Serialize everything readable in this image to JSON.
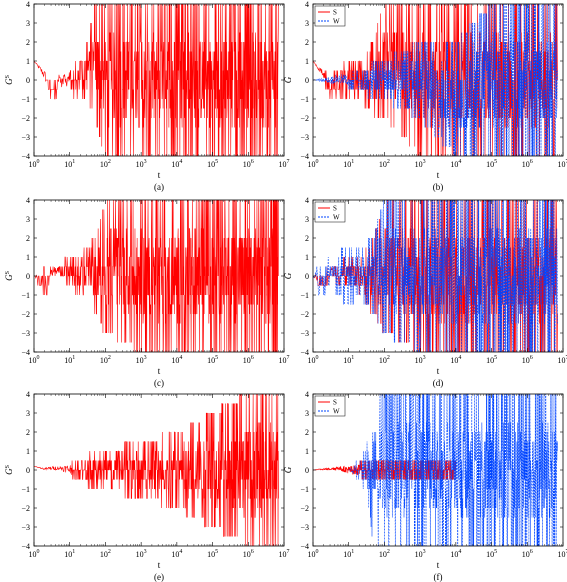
{
  "colors": {
    "S": "#ff0000",
    "W": "#0044ff",
    "axis": "#000000"
  },
  "chart_data": [
    {
      "type": "line",
      "panel": "(a)",
      "xlabel": "t",
      "ylabel": "G^S",
      "xscale": "log",
      "xlim": [
        1,
        10000000
      ],
      "ylim": [
        -4,
        4
      ],
      "legend": null,
      "series": [
        {
          "name": "S",
          "style": "solid",
          "x": [
            1,
            2,
            3,
            4,
            5,
            6,
            7,
            8,
            10,
            12,
            15,
            20,
            30,
            50,
            100,
            1000,
            10000,
            100000,
            1000000,
            7000000
          ],
          "envelope_min": [
            1,
            0,
            -1,
            -1,
            0,
            -0.5,
            0,
            -0.5,
            0,
            -1,
            -1,
            -1,
            -1,
            -2,
            -4,
            -4,
            -4,
            -4,
            -4,
            -4
          ],
          "envelope_max": [
            1,
            0.5,
            0,
            0,
            0.5,
            0,
            0.5,
            0,
            0.5,
            0.5,
            1,
            1,
            2,
            4,
            4,
            4,
            4,
            4,
            4,
            4
          ]
        }
      ]
    },
    {
      "type": "line",
      "panel": "(b)",
      "xlabel": "t",
      "ylabel": "G",
      "xscale": "log",
      "xlim": [
        1,
        10000000
      ],
      "ylim": [
        -4,
        4
      ],
      "legend": "top-left",
      "series": [
        {
          "name": "S",
          "style": "solid",
          "x": [
            1,
            2,
            3,
            5,
            10,
            20,
            50,
            100,
            1000,
            10000,
            100000,
            1000000,
            7000000
          ],
          "envelope_min": [
            1,
            0,
            -1,
            -1,
            -1,
            -1,
            -2,
            -2,
            -4,
            -4,
            -4,
            -4,
            -4
          ],
          "envelope_max": [
            1,
            0.5,
            0,
            0.5,
            1,
            1,
            2,
            4,
            4,
            4,
            4,
            4,
            4
          ]
        },
        {
          "name": "W",
          "style": "dashed",
          "x": [
            1,
            2,
            3,
            5,
            10,
            20,
            50,
            100,
            1000,
            10000,
            100000,
            1000000,
            7000000
          ],
          "envelope_min": [
            0,
            -0.1,
            -0.2,
            -0.2,
            -0.3,
            -0.5,
            -1,
            -1,
            -2,
            -4,
            -4,
            -4,
            -4
          ],
          "envelope_max": [
            0,
            0.1,
            0.2,
            0.3,
            0.3,
            0.5,
            1,
            1,
            2,
            2,
            4,
            4,
            4
          ]
        }
      ]
    },
    {
      "type": "line",
      "panel": "(c)",
      "xlabel": "t",
      "ylabel": "G^S",
      "xscale": "log",
      "xlim": [
        1,
        10000000
      ],
      "ylim": [
        -4,
        4
      ],
      "legend": null,
      "series": [
        {
          "name": "S",
          "style": "solid",
          "x": [
            1,
            2,
            3,
            5,
            10,
            20,
            50,
            100,
            1000,
            10000,
            100000,
            1000000,
            7000000
          ],
          "envelope_min": [
            0,
            -1.5,
            0,
            0,
            -0.5,
            -1,
            -2,
            -3,
            -4,
            -4,
            -4,
            -4,
            -4
          ],
          "envelope_max": [
            0,
            0.5,
            0.5,
            0.5,
            1,
            1,
            2,
            4,
            4,
            4,
            4,
            4,
            4
          ]
        }
      ]
    },
    {
      "type": "line",
      "panel": "(d)",
      "xlabel": "t",
      "ylabel": "G",
      "xscale": "log",
      "xlim": [
        1,
        10000000
      ],
      "ylim": [
        -4,
        4
      ],
      "legend": "top-left",
      "series": [
        {
          "name": "S",
          "style": "solid",
          "x": [
            1,
            2,
            3,
            5,
            10,
            20,
            50,
            100,
            1000,
            10000,
            100000,
            1000000,
            7000000
          ],
          "envelope_min": [
            0,
            -1,
            0,
            -0.5,
            -0.5,
            -1,
            -2,
            -3,
            -4,
            -4,
            -4,
            -4,
            -4
          ],
          "envelope_max": [
            0,
            0.5,
            0.5,
            0.5,
            1,
            1,
            2,
            4,
            4,
            4,
            4,
            4,
            4
          ]
        },
        {
          "name": "W",
          "style": "dashed",
          "x": [
            1,
            2,
            3,
            5,
            10,
            20,
            50,
            100,
            1000,
            10000,
            100000,
            1000000,
            7000000
          ],
          "envelope_min": [
            0,
            -1.5,
            -0.5,
            -1,
            -1.5,
            -1,
            -2,
            -3,
            -4,
            -4,
            -4,
            -4,
            -4
          ],
          "envelope_max": [
            0,
            1,
            1,
            1.5,
            1.5,
            1.5,
            2,
            4,
            4,
            4,
            4,
            4,
            4
          ]
        }
      ]
    },
    {
      "type": "line",
      "panel": "(e)",
      "xlabel": "t",
      "ylabel": "G^S",
      "xscale": "log",
      "xlim": [
        1,
        10000000
      ],
      "ylim": [
        -4,
        4
      ],
      "legend": null,
      "series": [
        {
          "name": "S",
          "style": "solid",
          "x": [
            1,
            2,
            3,
            5,
            10,
            20,
            50,
            100,
            1000,
            10000,
            100000,
            1000000,
            7000000
          ],
          "envelope_min": [
            0.2,
            0,
            0,
            0,
            -0.2,
            -0.5,
            -1,
            -1,
            -1.5,
            -2,
            -3,
            -4,
            -4
          ],
          "envelope_max": [
            0.2,
            0.1,
            0.2,
            0.2,
            0.3,
            0.5,
            1,
            1,
            1.5,
            2,
            3,
            4,
            4
          ]
        }
      ]
    },
    {
      "type": "line",
      "panel": "(f)",
      "xlabel": "t",
      "ylabel": "G",
      "xscale": "log",
      "xlim": [
        1,
        10000000
      ],
      "ylim": [
        -4,
        4
      ],
      "legend": "top-left",
      "series": [
        {
          "name": "S",
          "style": "solid",
          "x": [
            1,
            2,
            3,
            5,
            10,
            20,
            50,
            100,
            1000,
            10000
          ],
          "envelope_min": [
            0,
            0,
            0,
            0,
            -0.2,
            -0.3,
            -0.5,
            -0.5,
            -0.5,
            -0.5
          ],
          "envelope_max": [
            0,
            0.1,
            0.1,
            0.2,
            0.2,
            0.3,
            0.5,
            0.5,
            0.5,
            0.5
          ]
        },
        {
          "name": "W",
          "style": "dashed",
          "x": [
            10,
            20,
            30,
            50,
            100,
            1000,
            10000,
            100000,
            1000000,
            7000000
          ],
          "envelope_min": [
            0,
            -0.5,
            -1,
            -4,
            -4,
            -4,
            -4,
            -4,
            -4,
            -4
          ],
          "envelope_max": [
            0,
            0.5,
            1,
            4,
            4,
            4,
            4,
            4,
            4,
            4
          ]
        }
      ]
    }
  ],
  "tick_labels": {
    "y": [
      "4",
      "3",
      "2",
      "1",
      "0",
      "−1",
      "−2",
      "−3",
      "−4"
    ],
    "x_base": [
      "10",
      "10",
      "10",
      "10",
      "10",
      "10",
      "10",
      "10"
    ],
    "x_exp": [
      "0",
      "1",
      "2",
      "3",
      "4",
      "5",
      "6",
      "7"
    ]
  }
}
